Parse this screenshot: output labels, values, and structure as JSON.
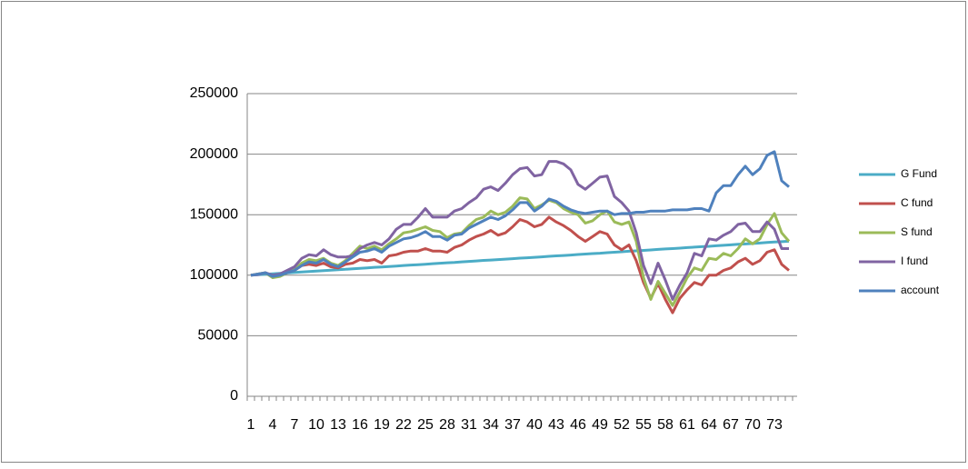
{
  "chart_data": {
    "type": "line",
    "categories": [
      1,
      null,
      null,
      4,
      null,
      null,
      7,
      null,
      null,
      10,
      null,
      null,
      13,
      null,
      null,
      16,
      null,
      null,
      19,
      null,
      null,
      22,
      null,
      null,
      25,
      null,
      null,
      28,
      null,
      null,
      31,
      null,
      null,
      34,
      null,
      null,
      37,
      null,
      null,
      40,
      null,
      null,
      43,
      null,
      null,
      46,
      null,
      null,
      49,
      null,
      null,
      52,
      null,
      null,
      55,
      null,
      null,
      58,
      null,
      null,
      61,
      null,
      null,
      64,
      null,
      null,
      67,
      null,
      null,
      70,
      null,
      null,
      73,
      null,
      null
    ],
    "ylim": [
      0,
      250000
    ],
    "yticks": [
      0,
      50000,
      100000,
      150000,
      200000,
      250000
    ],
    "grid": true,
    "legend": "right",
    "series": [
      {
        "name": "G Fund",
        "color": "#4bacc6",
        "values": [
          100000,
          100400,
          100800,
          101100,
          101500,
          101900,
          102300,
          102700,
          103000,
          103400,
          103800,
          104200,
          104600,
          104900,
          105300,
          105700,
          106100,
          106500,
          106800,
          107200,
          107600,
          108000,
          108400,
          108700,
          109100,
          109500,
          109900,
          110300,
          110600,
          111000,
          111400,
          111800,
          112200,
          112500,
          112900,
          113300,
          113700,
          114100,
          114400,
          114800,
          115200,
          115600,
          116000,
          116300,
          116700,
          117100,
          117500,
          117900,
          118200,
          118600,
          119000,
          119400,
          119800,
          120100,
          120500,
          120900,
          121300,
          121700,
          122000,
          122400,
          122800,
          123200,
          123600,
          123900,
          124300,
          124700,
          125100,
          125500,
          125800,
          126200,
          126600,
          127000,
          127400,
          127700,
          128100
        ]
      },
      {
        "name": "C fund",
        "color": "#c0504d",
        "values": [
          100000,
          101000,
          102000,
          99000,
          100000,
          103000,
          104000,
          108000,
          109000,
          108000,
          110000,
          107000,
          106000,
          109000,
          110000,
          113000,
          112000,
          113000,
          110000,
          116000,
          117000,
          119000,
          120000,
          120000,
          122000,
          120000,
          120000,
          119000,
          123000,
          125000,
          129000,
          132000,
          134000,
          137000,
          133000,
          135000,
          140000,
          146000,
          144000,
          140000,
          142000,
          148000,
          144000,
          141000,
          137000,
          132000,
          128000,
          132000,
          136000,
          134000,
          125000,
          121000,
          125000,
          112000,
          94000,
          81000,
          93000,
          80000,
          69000,
          81000,
          88000,
          94000,
          92000,
          100000,
          100000,
          104000,
          106000,
          111000,
          114000,
          109000,
          112000,
          119000,
          121000,
          109000,
          104000
        ]
      },
      {
        "name": "S fund",
        "color": "#9bbb59",
        "values": [
          100000,
          101000,
          102000,
          98000,
          99000,
          102000,
          105000,
          110000,
          113000,
          112000,
          114000,
          110000,
          108000,
          112000,
          118000,
          124000,
          122000,
          124000,
          121000,
          126000,
          130000,
          135000,
          136000,
          138000,
          140000,
          137000,
          136000,
          131000,
          134000,
          135000,
          141000,
          146000,
          148000,
          153000,
          150000,
          152000,
          157000,
          164000,
          163000,
          155000,
          158000,
          162000,
          160000,
          155000,
          152000,
          150000,
          143000,
          145000,
          150000,
          153000,
          144000,
          142000,
          144000,
          128000,
          98000,
          80000,
          95000,
          85000,
          75000,
          86000,
          98000,
          106000,
          104000,
          114000,
          113000,
          118000,
          116000,
          122000,
          130000,
          126000,
          130000,
          142000,
          151000,
          135000,
          128000
        ]
      },
      {
        "name": "I fund",
        "color": "#8064a2",
        "values": [
          100000,
          100500,
          102000,
          100000,
          101000,
          104000,
          107000,
          114000,
          117000,
          116000,
          121000,
          117000,
          115000,
          115000,
          116000,
          122000,
          125000,
          127000,
          125000,
          130000,
          138000,
          142000,
          142000,
          148000,
          155000,
          148000,
          148000,
          148000,
          153000,
          155000,
          160000,
          164000,
          171000,
          173000,
          170000,
          176000,
          183000,
          188000,
          189000,
          182000,
          183000,
          194000,
          194000,
          192000,
          187000,
          175000,
          171000,
          176000,
          181000,
          182000,
          165000,
          160000,
          153000,
          135000,
          108000,
          93000,
          110000,
          96000,
          80000,
          92000,
          102000,
          118000,
          116000,
          130000,
          129000,
          133000,
          136000,
          142000,
          143000,
          136000,
          136000,
          144000,
          138000,
          122000,
          122000
        ]
      },
      {
        "name": "account",
        "color": "#4f81bd",
        "values": [
          100000,
          101000,
          102000,
          99000,
          100000,
          102000,
          104000,
          108000,
          111000,
          110000,
          113000,
          109000,
          107000,
          111000,
          115000,
          119000,
          120000,
          122000,
          119000,
          124000,
          127000,
          130000,
          131000,
          133000,
          136000,
          132000,
          132000,
          129000,
          133000,
          134000,
          139000,
          142000,
          145000,
          148000,
          146000,
          149000,
          154000,
          160000,
          160000,
          153000,
          157000,
          163000,
          161000,
          157000,
          154000,
          152000,
          151000,
          152000,
          153000,
          153000,
          150000,
          151000,
          151000,
          152000,
          152000,
          153000,
          153000,
          153000,
          154000,
          154000,
          154000,
          155000,
          155000,
          153000,
          168000,
          174000,
          174000,
          183000,
          190000,
          183000,
          188000,
          199000,
          202000,
          178000,
          173000
        ]
      }
    ]
  }
}
